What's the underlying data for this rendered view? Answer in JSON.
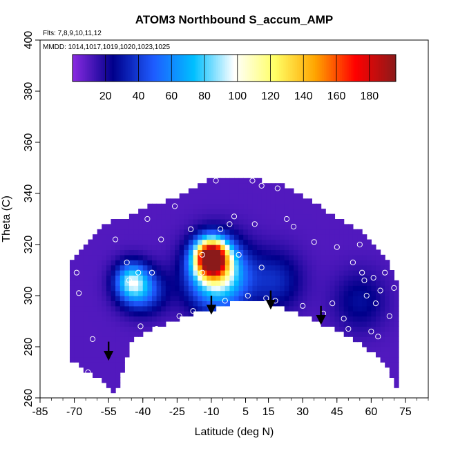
{
  "chart_data": {
    "type": "heatmap",
    "title": "ATOM3 Northbound S_accum_AMP",
    "flights_label": "Flts: 7,8,9,10,11,12",
    "dates_label": "MMDD: 1014,1017,1019,1020,1023,1025",
    "xlabel": "Latitude (deg N)",
    "ylabel": "Theta (C)",
    "xlim": [
      -85,
      85
    ],
    "ylim": [
      260,
      400
    ],
    "x_ticks": [
      -85,
      -70,
      -55,
      -40,
      -25,
      -10,
      5,
      15,
      30,
      45,
      60,
      75
    ],
    "y_ticks": [
      260,
      280,
      300,
      320,
      340,
      360,
      380,
      400
    ],
    "colorbar": {
      "min": 0,
      "max": 196,
      "ticks": [
        20,
        40,
        60,
        80,
        100,
        120,
        140,
        160,
        180
      ],
      "colors": [
        "#8a2be2",
        "#00008b",
        "#1e5bff",
        "#00bfff",
        "#ffffff",
        "#ffff66",
        "#ffa500",
        "#ff0000",
        "#8b1a1a"
      ]
    },
    "field": {
      "lat": [
        -72,
        -60,
        -52,
        -45,
        -38,
        -30,
        -22,
        -15,
        -8,
        -2,
        5,
        12,
        20,
        28,
        36,
        44,
        52,
        60,
        66,
        72
      ],
      "theta_range": [
        [
          275,
          312
        ],
        [
          268,
          326
        ],
        [
          262,
          330
        ],
        [
          283,
          331
        ],
        [
          286,
          335
        ],
        [
          289,
          337
        ],
        [
          292,
          340
        ],
        [
          294,
          344
        ],
        [
          295,
          346
        ],
        [
          297,
          347
        ],
        [
          298,
          346
        ],
        [
          298,
          345
        ],
        [
          296,
          344
        ],
        [
          293,
          340
        ],
        [
          290,
          336
        ],
        [
          287,
          331
        ],
        [
          283,
          327
        ],
        [
          278,
          322
        ],
        [
          274,
          315
        ],
        [
          262,
          305
        ]
      ],
      "background_value": 10,
      "blobs": [
        {
          "lat": -10,
          "theta": 315,
          "peak": 185,
          "sx": 5,
          "sy": 5
        },
        {
          "lat": -7,
          "theta": 308,
          "peak": 90,
          "sx": 9,
          "sy": 9
        },
        {
          "lat": -45,
          "theta": 306,
          "peak": 62,
          "sx": 5,
          "sy": 5
        },
        {
          "lat": -40,
          "theta": 302,
          "peak": 40,
          "sx": 7,
          "sy": 6
        },
        {
          "lat": 18,
          "theta": 306,
          "peak": 25,
          "sx": 8,
          "sy": 8
        },
        {
          "lat": 55,
          "theta": 298,
          "peak": 18,
          "sx": 8,
          "sy": 8
        }
      ]
    },
    "observations": [
      [
        -76,
        282
      ],
      [
        -74,
        291
      ],
      [
        -69,
        309
      ],
      [
        -68,
        301
      ],
      [
        -62,
        283
      ],
      [
        -64,
        270
      ],
      [
        -68,
        262
      ],
      [
        -52,
        322
      ],
      [
        -47,
        313
      ],
      [
        -46,
        306
      ],
      [
        -42,
        309
      ],
      [
        -41,
        288
      ],
      [
        -38,
        330
      ],
      [
        -36,
        309
      ],
      [
        -34,
        287
      ],
      [
        -32,
        322
      ],
      [
        -26,
        335
      ],
      [
        -24,
        292
      ],
      [
        -19,
        326
      ],
      [
        -18,
        294
      ],
      [
        -14,
        316
      ],
      [
        -14,
        309
      ],
      [
        -8,
        345
      ],
      [
        -6,
        326
      ],
      [
        -4,
        298
      ],
      [
        -2,
        328
      ],
      [
        0,
        331
      ],
      [
        2,
        316
      ],
      [
        6,
        300
      ],
      [
        8,
        345
      ],
      [
        9,
        328
      ],
      [
        12,
        343
      ],
      [
        12,
        311
      ],
      [
        14,
        299
      ],
      [
        18,
        298
      ],
      [
        19,
        342
      ],
      [
        23,
        330
      ],
      [
        26,
        327
      ],
      [
        30,
        296
      ],
      [
        35,
        321
      ],
      [
        39,
        293
      ],
      [
        43,
        297
      ],
      [
        45,
        319
      ],
      [
        48,
        291
      ],
      [
        50,
        287
      ],
      [
        52,
        313
      ],
      [
        55,
        320
      ],
      [
        56,
        309
      ],
      [
        57,
        306
      ],
      [
        58,
        300
      ],
      [
        60,
        286
      ],
      [
        61,
        307
      ],
      [
        62,
        297
      ],
      [
        63,
        284
      ],
      [
        64,
        302
      ],
      [
        66,
        309
      ],
      [
        68,
        292
      ],
      [
        70,
        303
      ],
      [
        73,
        261
      ]
    ],
    "arrows": [
      [
        -55,
        282
      ],
      [
        -10,
        300
      ],
      [
        16,
        302
      ],
      [
        38,
        296
      ]
    ]
  }
}
